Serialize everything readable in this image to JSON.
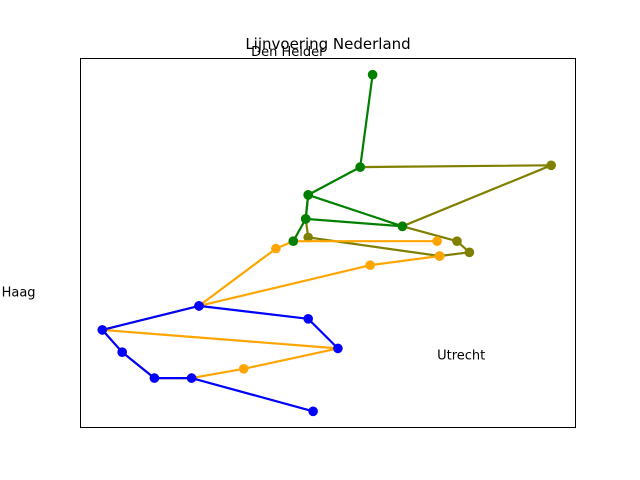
{
  "chart_data": {
    "type": "line",
    "title": "Lijnvoering Nederland",
    "xlabel": "",
    "ylabel": "",
    "xlim": [
      0,
      100
    ],
    "ylim": [
      0,
      100
    ],
    "axis_ticks": false,
    "grid": false,
    "legend": null,
    "place_labels": [
      {
        "text": "Den Helder",
        "x": 34.5,
        "y": 100.5
      },
      {
        "text": "Haag",
        "x": -15.8,
        "y": 35.5
      },
      {
        "text": "Utrecht",
        "x": 72.0,
        "y": 18.5
      }
    ],
    "series": [
      {
        "color": "#808000",
        "points": [
          [
            56.5,
            70.5
          ],
          [
            95,
            71
          ],
          [
            65,
            54.5
          ],
          [
            76,
            50.5
          ],
          [
            78.5,
            47.5
          ],
          [
            72.5,
            46.5
          ],
          [
            46,
            51.5
          ],
          [
            45.5,
            56.5
          ],
          [
            46,
            63
          ]
        ]
      },
      {
        "color": "#ffa500",
        "points": [
          [
            72,
            50.5
          ],
          [
            43,
            50.5
          ],
          [
            39.5,
            48.5
          ],
          [
            24,
            33
          ],
          [
            4.5,
            26.5
          ],
          [
            52,
            21.5
          ],
          [
            33,
            16
          ],
          [
            22.5,
            13.5
          ],
          [
            15,
            13.5
          ],
          [
            8.5,
            20.5
          ],
          [
            4.5,
            26.5
          ]
        ]
      },
      {
        "color": "#ffa500",
        "points": [
          [
            24,
            33
          ],
          [
            58.5,
            44
          ],
          [
            72.5,
            46.5
          ]
        ]
      },
      {
        "color": "#008000",
        "points": [
          [
            59,
            95.5
          ],
          [
            56.5,
            70.5
          ],
          [
            46,
            63
          ],
          [
            45.5,
            56.5
          ],
          [
            65,
            54.5
          ],
          [
            46,
            63
          ]
        ]
      },
      {
        "color": "#008000",
        "points": [
          [
            45.5,
            56.5
          ],
          [
            43,
            50.5
          ]
        ]
      },
      {
        "color": "#0000ff",
        "points": [
          [
            24,
            33
          ],
          [
            46,
            29.5
          ],
          [
            52,
            21.5
          ]
        ]
      },
      {
        "color": "#0000ff",
        "points": [
          [
            24,
            33
          ],
          [
            4.5,
            26.5
          ],
          [
            8.5,
            20.5
          ],
          [
            15,
            13.5
          ],
          [
            22.5,
            13.5
          ],
          [
            47,
            4.5
          ]
        ]
      }
    ]
  }
}
